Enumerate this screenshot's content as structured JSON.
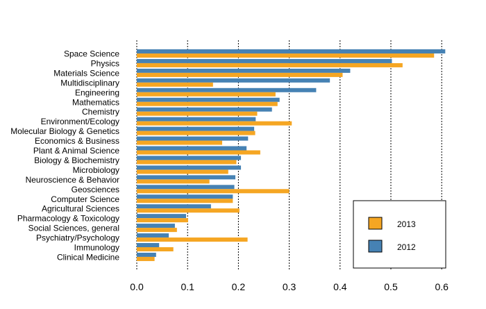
{
  "chart_data": {
    "type": "bar",
    "orientation": "horizontal",
    "title": "",
    "xlabel": "",
    "ylabel": "",
    "xlim": [
      0,
      0.6
    ],
    "grid": "vertical-dotted",
    "legend_position": "bottom-right",
    "x_ticks": [
      "0.0",
      "0.1",
      "0.2",
      "0.3",
      "0.4",
      "0.5",
      "0.6"
    ],
    "categories": [
      "Space Science",
      "Physics",
      "Materials Science",
      "Multidisciplinary",
      "Engineering",
      "Mathematics",
      "Chemistry",
      "Environment/Ecology",
      "Molecular Biology & Genetics",
      "Economics & Business",
      "Plant & Animal Science",
      "Biology & Biochemistry",
      "Microbiology",
      "Neuroscience & Behavior",
      "Geosciences",
      "Computer Science",
      "Agricultural Sciences",
      "Pharmacology & Toxicology",
      "Social Sciences, general",
      "Psychiatry/Psychology",
      "Immunology",
      "Clinical Medicine"
    ],
    "series": [
      {
        "name": "2012",
        "color": "#4682B4",
        "values": [
          0.607,
          0.502,
          0.42,
          0.38,
          0.353,
          0.281,
          0.266,
          0.234,
          0.231,
          0.219,
          0.216,
          0.205,
          0.205,
          0.194,
          0.192,
          0.189,
          0.146,
          0.097,
          0.075,
          0.063,
          0.044,
          0.038
        ]
      },
      {
        "name": "2013",
        "color": "#F5A623",
        "values": [
          0.585,
          0.523,
          0.405,
          0.15,
          0.273,
          0.277,
          0.237,
          0.305,
          0.233,
          0.168,
          0.243,
          0.196,
          0.18,
          0.143,
          0.3,
          0.189,
          0.202,
          0.101,
          0.079,
          0.218,
          0.072,
          0.035
        ]
      }
    ],
    "legend": [
      {
        "label": "2013",
        "color": "#F5A623"
      },
      {
        "label": "2012",
        "color": "#4682B4"
      }
    ]
  }
}
